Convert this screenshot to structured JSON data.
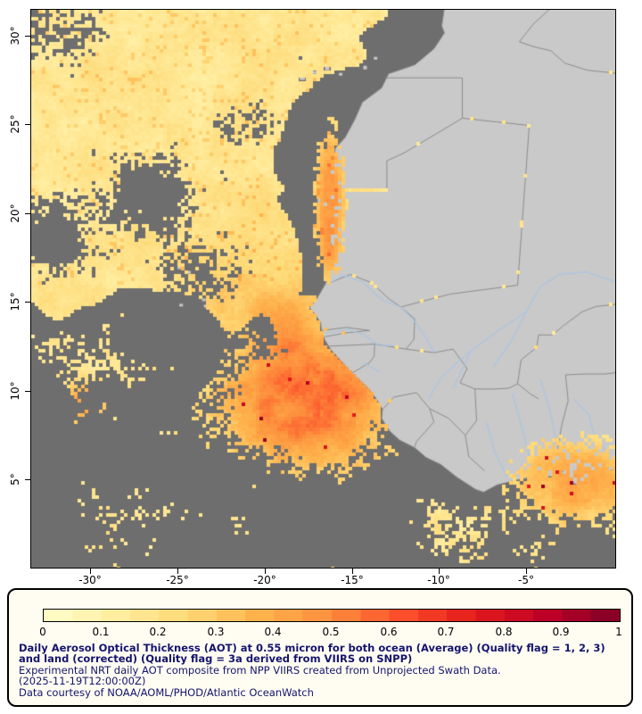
{
  "map": {
    "y_tick_labels": [
      "30°",
      "25°",
      "20°",
      "15°",
      "10°",
      "5°"
    ],
    "x_tick_labels": [
      "-30°",
      "-25°",
      "-20°",
      "-15°",
      "-10°",
      "-5°"
    ],
    "colors": {
      "no_data": "#6e6e6e",
      "land": "#c9c9c9",
      "border": "#8c8c8c",
      "river": "#a9c6e4",
      "frame": "#000000",
      "background": "#ffffff"
    }
  },
  "legend": {
    "tick_labels": [
      "0",
      "0.1",
      "0.2",
      "0.3",
      "0.4",
      "0.5",
      "0.6",
      "0.7",
      "0.8",
      "0.9",
      "1"
    ],
    "colormap_stops": [
      "#ffffcc",
      "#ffeda0",
      "#fed976",
      "#feb24c",
      "#fd8d3c",
      "#fc4e2a",
      "#e31a1c",
      "#bd0026",
      "#800026"
    ],
    "value_min": 0,
    "value_max": 1
  },
  "caption": {
    "title": "Daily Aerosol Optical Thickness (AOT) at 0.55 micron for both ocean (Average) (Quality flag = 1, 2, 3) and land (corrected) (Quality flag = 3a derived from VIIRS on SNPP)",
    "line2": "Experimental NRT daily AOT composite from NPP VIIRS created from Unprojected Swath Data.",
    "line3": "(2025-11-19T12:00:00Z)",
    "line4": "Data courtesy of NOAA/AOML/PHOD/Atlantic OceanWatch",
    "text_color": "#14146e"
  }
}
